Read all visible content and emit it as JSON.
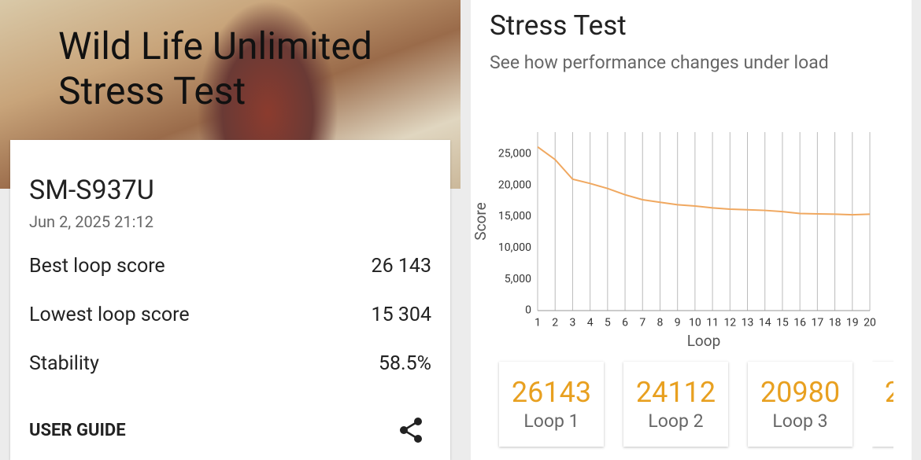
{
  "hero": {
    "title": "Wild Life Unlimited Stress Test"
  },
  "result": {
    "device": "SM-S937U",
    "date": "Jun 2, 2025 21:12",
    "rows": [
      {
        "label": "Best loop score",
        "value": "26 143"
      },
      {
        "label": "Lowest loop score",
        "value": "15 304"
      },
      {
        "label": "Stability",
        "value": "58.5%"
      }
    ],
    "guide": "USER GUIDE"
  },
  "panel": {
    "title": "Stress Test",
    "subtitle": "See how performance changes under load",
    "loop_cards": [
      "Loop 1",
      "Loop 2",
      "Loop 3"
    ]
  },
  "chart_data": {
    "type": "line",
    "x_label": "Loop",
    "y_label": "Score",
    "x": [
      1,
      2,
      3,
      4,
      5,
      6,
      7,
      8,
      9,
      10,
      11,
      12,
      13,
      14,
      15,
      16,
      17,
      18,
      19,
      20
    ],
    "values": [
      26143,
      24112,
      20980,
      20300,
      19500,
      18500,
      17700,
      17300,
      16900,
      16700,
      16400,
      16200,
      16100,
      16000,
      15800,
      15500,
      15450,
      15400,
      15304,
      15400
    ],
    "color": "#f0a860",
    "xlim": [
      1,
      20
    ],
    "ylim": [
      0,
      28500
    ],
    "yticks": [
      0,
      {
        "value": 5000,
        "label": "5,000"
      },
      {
        "value": 10000,
        "label": "10,000"
      },
      {
        "value": 15000,
        "label": "15,000"
      },
      {
        "value": 20000,
        "label": "20,000"
      },
      {
        "value": 25000,
        "label": "25,000"
      }
    ],
    "grid": true
  }
}
